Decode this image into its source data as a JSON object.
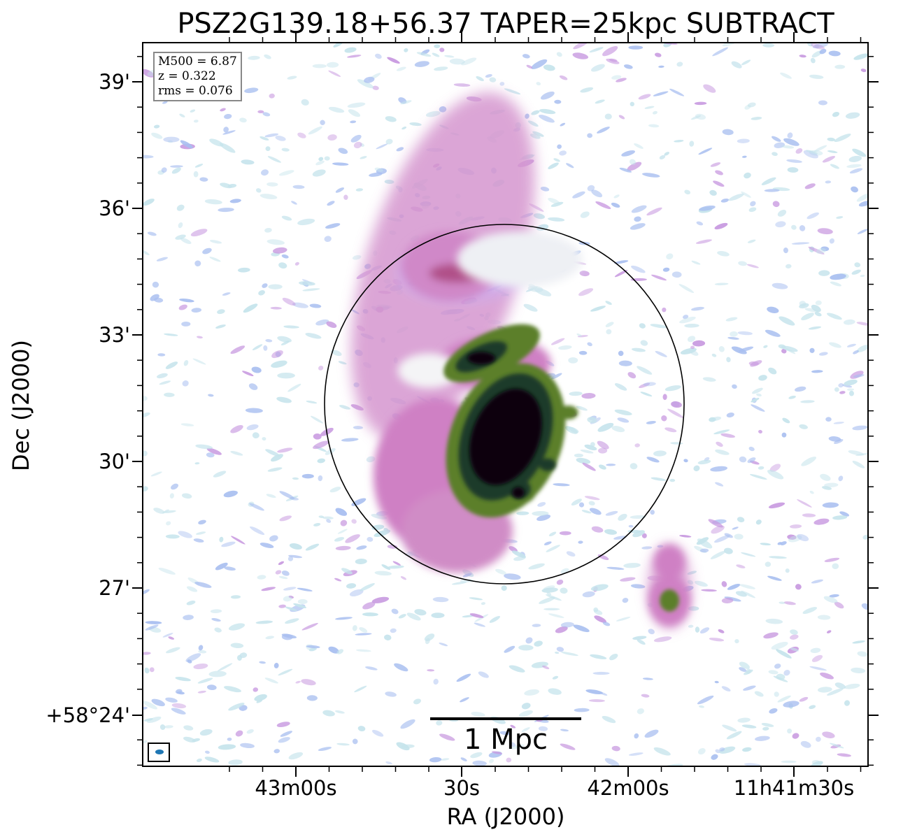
{
  "title": "PSZ2G139.18+56.37 TAPER=25kpc SUBTRACT",
  "info": {
    "mass": "M500 = 6.87",
    "redshift": "z = 0.322",
    "rms": "rms = 0.076"
  },
  "scale_bar_label": "1 Mpc",
  "axes": {
    "x_title": "RA (J2000)",
    "y_title": "Dec (J2000)",
    "x_ticks": [
      "43m00s",
      "30s",
      "42m00s",
      "11h41m30s"
    ],
    "y_ticks": [
      "39'",
      "36'",
      "33'",
      "30'",
      "27'",
      "+58°24'"
    ]
  },
  "colors": {
    "noise_light": "#c6e4ec",
    "noise_blue": "#a9bff0",
    "noise_violet": "#c89ae0",
    "emission_pink": "#d088c8",
    "emission_green": "#5b7f2c",
    "emission_dark_green": "#1f3a2c",
    "emission_core": "#07030f",
    "circle": "#000000",
    "beam": "#1f77b4"
  }
}
